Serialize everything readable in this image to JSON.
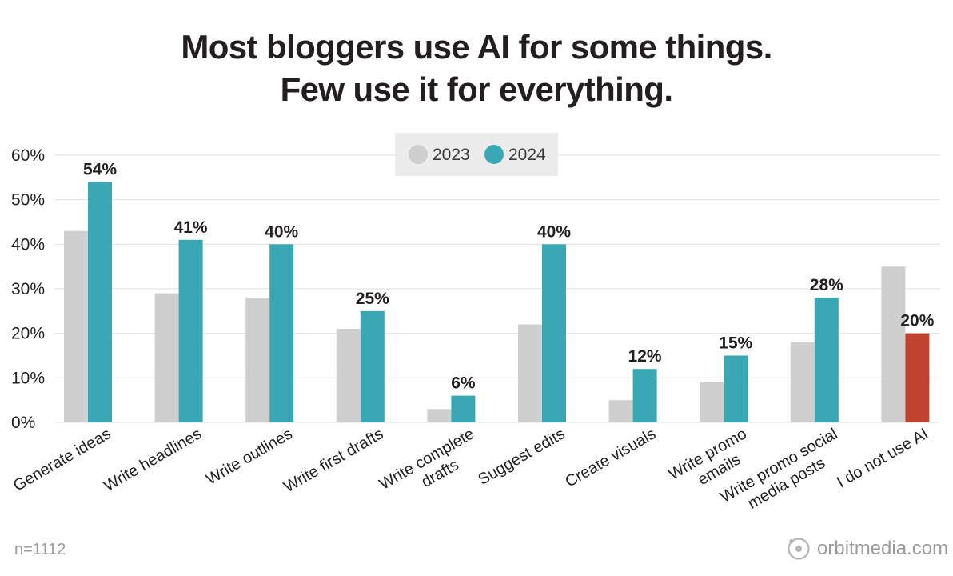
{
  "title_lines": [
    "Most bloggers use AI for some things.",
    "Few use it for everything."
  ],
  "footnote": "n=1112",
  "brand": {
    "name": "orbitmedia.com",
    "icon": "orbit-logo-icon"
  },
  "colors": {
    "series_2023": "#cfcfcf",
    "series_2024": "#3aa7b4",
    "no_ai_2024": "#c0432f",
    "grid": "#e3e3e3",
    "axis_text": "#231f20",
    "legend_bg": "#ececec"
  },
  "chart_data": {
    "type": "bar",
    "title": "Most bloggers use AI for some things. Few use it for everything.",
    "xlabel": "",
    "ylabel": "",
    "ylim": [
      0,
      60
    ],
    "yticks": [
      0,
      10,
      20,
      30,
      40,
      50,
      60
    ],
    "ytick_labels": [
      "0%",
      "10%",
      "20%",
      "30%",
      "40%",
      "50%",
      "60%"
    ],
    "grid": true,
    "legend": "top-center",
    "categories": [
      "Generate ideas",
      "Write headlines",
      "Write outlines",
      "Write first drafts",
      "Write complete drafts",
      "Suggest edits",
      "Create visuals",
      "Write promo emails",
      "Write promo social media posts",
      "I do not use AI"
    ],
    "category_lines": [
      [
        "Generate ideas"
      ],
      [
        "Write headlines"
      ],
      [
        "Write outlines"
      ],
      [
        "Write first drafts"
      ],
      [
        "Write complete",
        "drafts"
      ],
      [
        "Suggest edits"
      ],
      [
        "Create visuals"
      ],
      [
        "Write promo",
        "emails"
      ],
      [
        "Write promo social",
        "media posts"
      ],
      [
        "I do not use AI"
      ]
    ],
    "series": [
      {
        "name": "2023",
        "values": [
          43,
          29,
          28,
          21,
          3,
          22,
          5,
          9,
          18,
          35
        ],
        "labels": []
      },
      {
        "name": "2024",
        "values": [
          54,
          41,
          40,
          25,
          6,
          40,
          12,
          15,
          28,
          20
        ],
        "labels": [
          "54%",
          "41%",
          "40%",
          "25%",
          "6%",
          "40%",
          "12%",
          "15%",
          "28%",
          "20%"
        ]
      }
    ]
  }
}
